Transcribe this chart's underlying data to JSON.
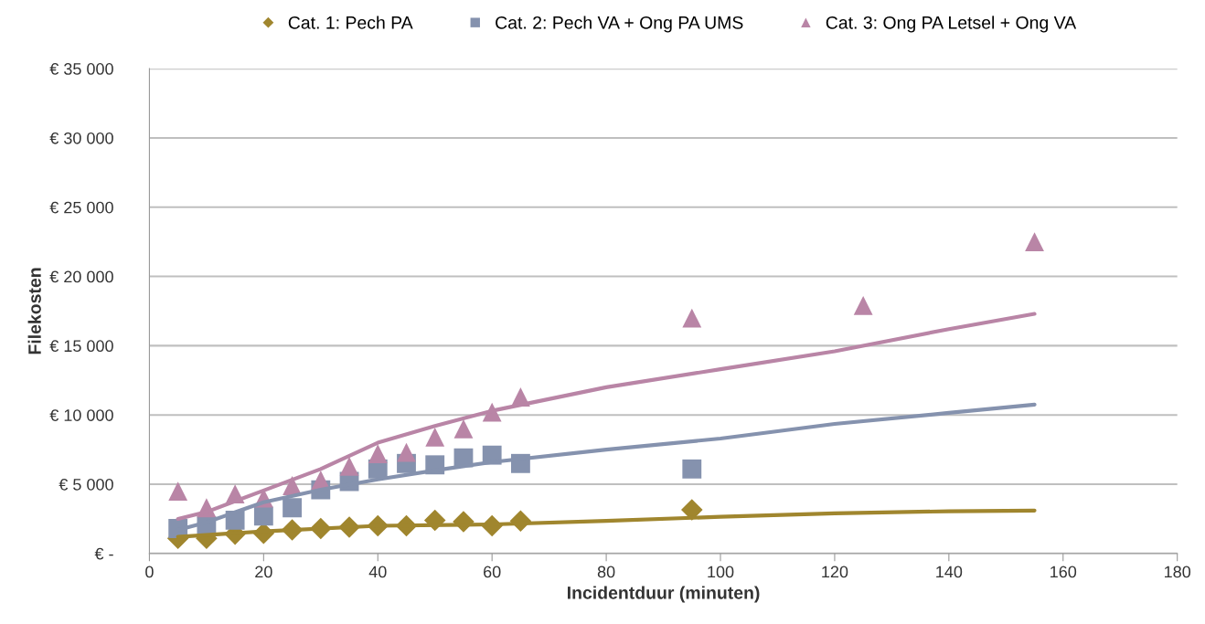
{
  "chart_data": {
    "type": "scatter",
    "xlabel": "Incidentduur (minuten)",
    "ylabel": "Filekosten",
    "xlim": [
      0,
      180
    ],
    "xticks": [
      0,
      20,
      40,
      60,
      80,
      100,
      120,
      140,
      160,
      180
    ],
    "ylim": [
      0,
      35000
    ],
    "yticks": [
      {
        "value": 0,
        "label": "€ -"
      },
      {
        "value": 5000,
        "label": "€ 5 000"
      },
      {
        "value": 10000,
        "label": "€ 10 000"
      },
      {
        "value": 15000,
        "label": "€ 15 000"
      },
      {
        "value": 20000,
        "label": "€ 20 000"
      },
      {
        "value": 25000,
        "label": "€ 25 000"
      },
      {
        "value": 30000,
        "label": "€ 30 000"
      },
      {
        "value": 35000,
        "label": "€ 35 000"
      }
    ],
    "grid": "y",
    "legend": "top",
    "series": [
      {
        "name": "Cat. 1: Pech PA",
        "marker": "diamond",
        "color": "#a0862e",
        "x": [
          5,
          10,
          15,
          20,
          25,
          30,
          35,
          40,
          45,
          50,
          55,
          60,
          65,
          95
        ],
        "values": [
          1100,
          1100,
          1400,
          1450,
          1700,
          1800,
          1900,
          2000,
          2000,
          2400,
          2300,
          2000,
          2350,
          3150
        ]
      },
      {
        "name": "Cat. 2: Pech VA + Ong PA UMS",
        "marker": "square",
        "color": "#8592ae",
        "x": [
          5,
          10,
          15,
          20,
          25,
          30,
          35,
          40,
          45,
          50,
          55,
          60,
          65,
          95
        ],
        "values": [
          1800,
          2000,
          2400,
          2700,
          3300,
          4600,
          5200,
          6100,
          6500,
          6400,
          6900,
          7100,
          6500,
          6100
        ]
      },
      {
        "name": "Cat. 3: Ong PA Letsel + Ong VA",
        "marker": "triangle",
        "color": "#b985a6",
        "x": [
          5,
          10,
          15,
          20,
          25,
          30,
          35,
          40,
          45,
          50,
          55,
          60,
          65,
          95,
          125,
          155
        ],
        "values": [
          4500,
          3300,
          4300,
          4000,
          4900,
          5300,
          6300,
          7200,
          7300,
          8400,
          9000,
          10200,
          11300,
          17000,
          17900,
          22500
        ]
      },
      {
        "type": "line",
        "marker": "none",
        "color": "#a0862e",
        "x": [
          5,
          20,
          40,
          60,
          80,
          100,
          120,
          140,
          155
        ],
        "values": [
          1200,
          1600,
          2000,
          2100,
          2350,
          2650,
          2900,
          3050,
          3100
        ]
      },
      {
        "type": "line",
        "marker": "none",
        "color": "#8592ae",
        "x": [
          5,
          10,
          20,
          30,
          40,
          50,
          60,
          80,
          100,
          120,
          140,
          155
        ],
        "values": [
          1700,
          2250,
          3700,
          4600,
          5350,
          6000,
          6600,
          7500,
          8300,
          9350,
          10150,
          10750
        ]
      },
      {
        "type": "line",
        "marker": "none",
        "color": "#b985a6",
        "x": [
          5,
          10,
          20,
          30,
          40,
          50,
          60,
          80,
          100,
          120,
          140,
          155
        ],
        "values": [
          2500,
          3000,
          4550,
          6100,
          8000,
          9200,
          10300,
          12000,
          13300,
          14600,
          16200,
          17300
        ]
      }
    ]
  }
}
